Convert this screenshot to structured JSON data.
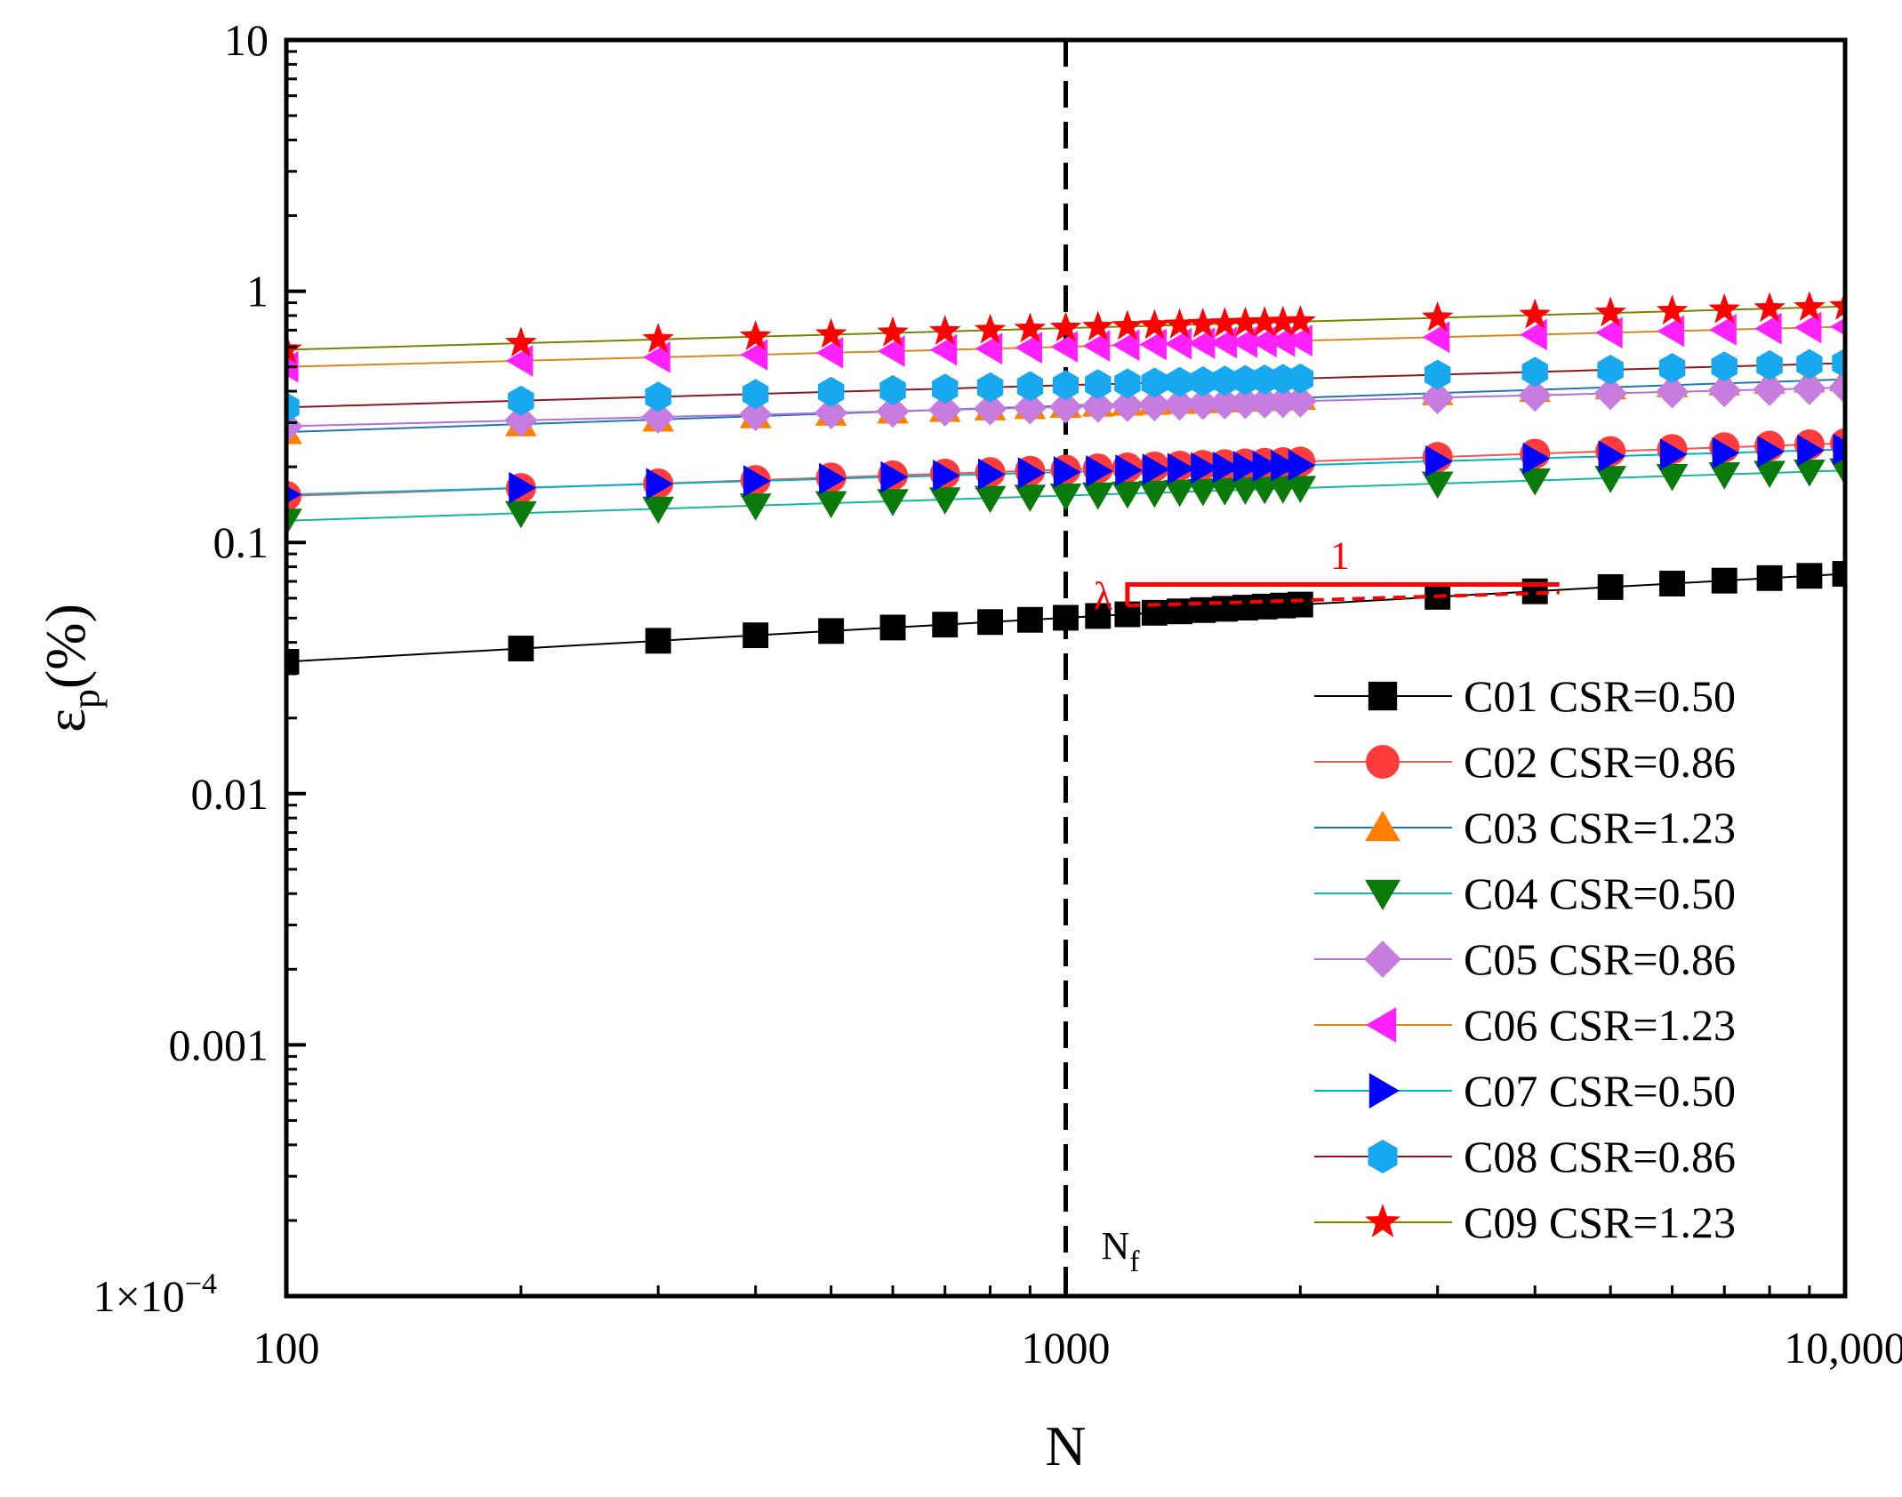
{
  "chart_data": {
    "type": "scatter",
    "x_scale": "log",
    "y_scale": "log",
    "xlim": [
      100,
      10000
    ],
    "ylim": [
      0.0001,
      10
    ],
    "xlabel": "N",
    "ylabel": {
      "main": "ε",
      "sub": "p",
      "suffix": "(%)"
    },
    "x_ticks": [
      {
        "value": 100,
        "label": "100"
      },
      {
        "value": 1000,
        "label": "1000"
      },
      {
        "value": 10000,
        "label": "10,000"
      }
    ],
    "y_ticks": [
      {
        "value": 10,
        "label": "10"
      },
      {
        "value": 1,
        "label": "1"
      },
      {
        "value": 0.1,
        "label": "0.1"
      },
      {
        "value": 0.01,
        "label": "0.01"
      },
      {
        "value": 0.001,
        "label": "0.001"
      },
      {
        "value": 0.0001,
        "label": "1×10",
        "exp": "−4"
      }
    ],
    "n_points": [
      100,
      200,
      300,
      400,
      500,
      600,
      700,
      800,
      900,
      1000,
      1100,
      1200,
      1300,
      1400,
      1500,
      1600,
      1700,
      1800,
      1900,
      2000,
      3000,
      4000,
      5000,
      6000,
      7000,
      8000,
      9000,
      10000
    ],
    "series": [
      {
        "name": "C01 CSR=0.50",
        "marker": "square",
        "color": "#000000",
        "line_color": "#000000",
        "a": 0.0335,
        "b": 0.175
      },
      {
        "name": "C02 CSR=0.86",
        "marker": "circle",
        "color": "#ff3b3b",
        "line_color": "#ff5050",
        "a": 0.153,
        "b": 0.105
      },
      {
        "name": "C03 CSR=1.23",
        "marker": "triangle-up",
        "color": "#ff7f00",
        "line_color": "#1f77b4",
        "a": 0.275,
        "b": 0.105
      },
      {
        "name": "C04 CSR=0.50",
        "marker": "triangle-down",
        "color": "#0a7a0a",
        "line_color": "#17b5a0",
        "a": 0.122,
        "b": 0.1
      },
      {
        "name": "C05 CSR=0.86",
        "marker": "diamond",
        "color": "#c77ce0",
        "line_color": "#b070e0",
        "a": 0.29,
        "b": 0.077
      },
      {
        "name": "C06 CSR=1.23",
        "marker": "triangle-left",
        "color": "#ff22ff",
        "line_color": "#d48a1a",
        "a": 0.5,
        "b": 0.08
      },
      {
        "name": "C07 CSR=0.50",
        "marker": "triangle-right",
        "color": "#0000ff",
        "line_color": "#00b4c8",
        "a": 0.155,
        "b": 0.09
      },
      {
        "name": "C08 CSR=0.86",
        "marker": "hexagon",
        "color": "#18a8f0",
        "line_color": "#8b1a1a",
        "a": 0.345,
        "b": 0.088
      },
      {
        "name": "C09 CSR=1.23",
        "marker": "star",
        "color": "#ff0000",
        "line_color": "#808000",
        "a": 0.585,
        "b": 0.086
      }
    ],
    "reference_line": {
      "x": 1000,
      "label": "N",
      "label_sub": "f"
    },
    "slope_annotation": {
      "run_label": "1",
      "rise_label": "λ",
      "x1": 1200,
      "x2": 4300,
      "y_top": 0.068,
      "y_base": 0.056
    },
    "legend_position": "bottom-right",
    "grid": false
  }
}
